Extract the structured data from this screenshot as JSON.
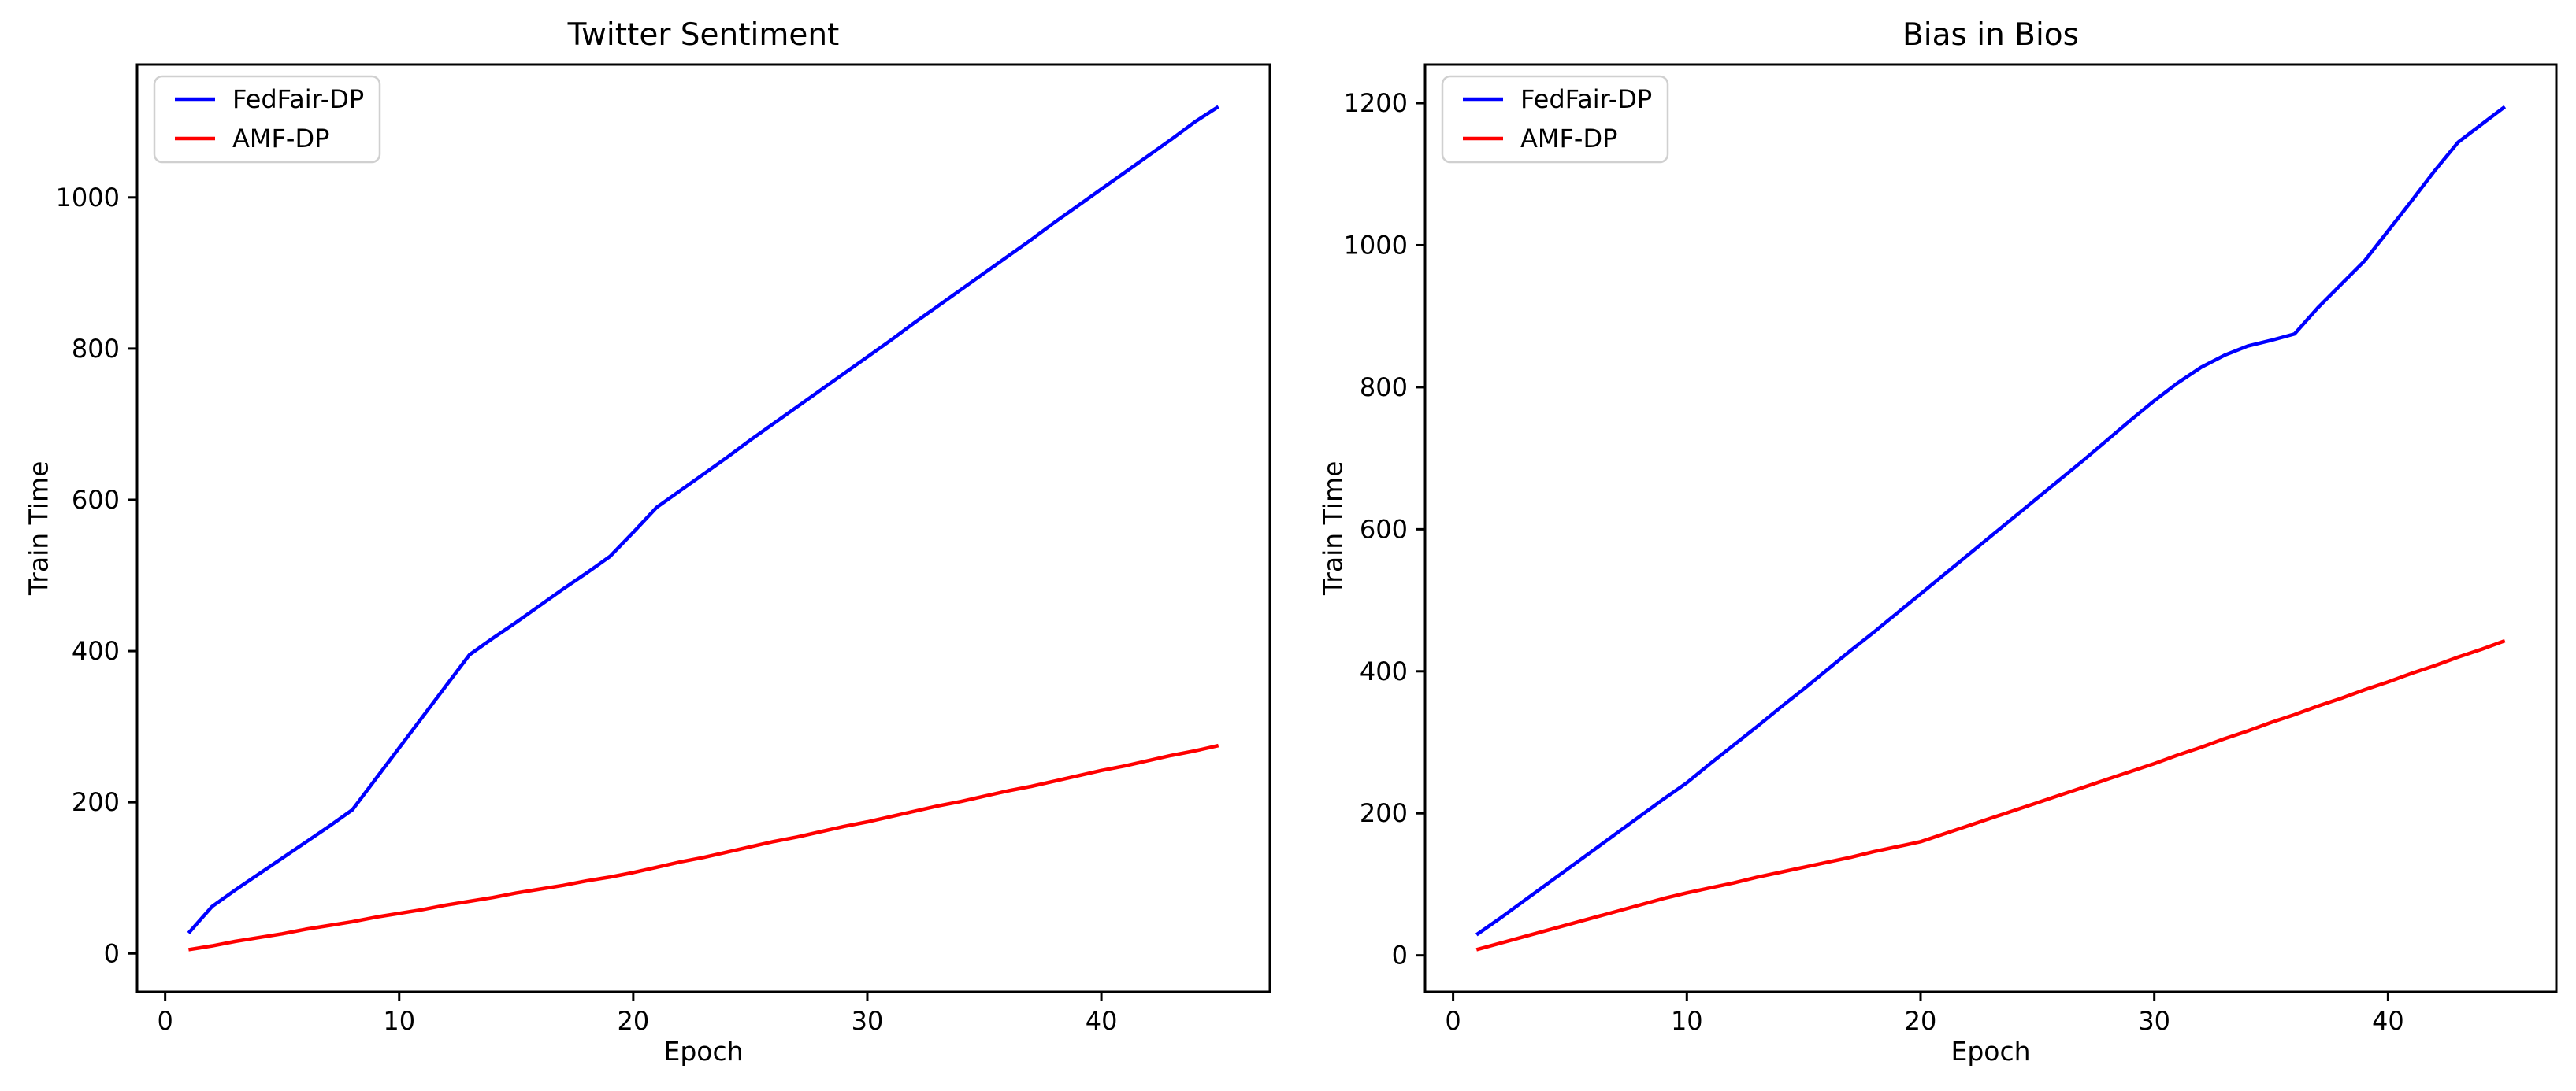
{
  "figure": {
    "background": "#ffffff",
    "text_color": "#000000",
    "spine_color": "#000000"
  },
  "legend_style": {
    "border_color": "#d0d0d0",
    "background": "#ffffff"
  },
  "chart_data": [
    {
      "type": "line",
      "title": "Twitter Sentiment",
      "xlabel": "Epoch",
      "ylabel": "Train Time",
      "x_ticks": [
        0,
        10,
        20,
        30,
        40
      ],
      "y_ticks": [
        0,
        200,
        400,
        600,
        800,
        1000
      ],
      "xlim": [
        -1.2,
        47.2
      ],
      "ylim": [
        -50.75,
        1175.75
      ],
      "grid": false,
      "legend_position": "upper left",
      "x": [
        1,
        2,
        3,
        4,
        5,
        6,
        7,
        8,
        9,
        10,
        11,
        12,
        13,
        14,
        15,
        16,
        17,
        18,
        19,
        20,
        21,
        22,
        23,
        24,
        25,
        26,
        27,
        28,
        29,
        30,
        31,
        32,
        33,
        34,
        35,
        36,
        37,
        38,
        39,
        40,
        41,
        42,
        43,
        44,
        45
      ],
      "series": [
        {
          "name": "FedFair-DP",
          "color": "#0000ff",
          "values": [
            27,
            62,
            84,
            105,
            126,
            147,
            168,
            190,
            231,
            272,
            313,
            354,
            395,
            417,
            438,
            460,
            482,
            503,
            525,
            557,
            590,
            612,
            634,
            656,
            679,
            701,
            723,
            745,
            767,
            789,
            811,
            834,
            856,
            878,
            900,
            922,
            944,
            967,
            989,
            1011,
            1033,
            1055,
            1077,
            1100,
            1120
          ]
        },
        {
          "name": "AMF-DP",
          "color": "#ff0000",
          "values": [
            5,
            10,
            16,
            21,
            26,
            32,
            37,
            42,
            48,
            53,
            58,
            64,
            69,
            74,
            80,
            85,
            90,
            96,
            101,
            107,
            114,
            121,
            127,
            134,
            141,
            148,
            154,
            161,
            168,
            174,
            181,
            188,
            195,
            201,
            208,
            215,
            221,
            228,
            235,
            242,
            248,
            255,
            262,
            268,
            275
          ]
        }
      ]
    },
    {
      "type": "line",
      "title": "Bias in Bios",
      "xlabel": "Epoch",
      "ylabel": "Train Time",
      "x_ticks": [
        0,
        10,
        20,
        30,
        40
      ],
      "y_ticks": [
        0,
        200,
        400,
        600,
        800,
        1000,
        1200
      ],
      "xlim": [
        -1.2,
        47.2
      ],
      "ylim": [
        -51.35,
        1254.35
      ],
      "grid": false,
      "legend_position": "upper left",
      "x": [
        1,
        2,
        3,
        4,
        5,
        6,
        7,
        8,
        9,
        10,
        11,
        12,
        13,
        14,
        15,
        16,
        17,
        18,
        19,
        20,
        21,
        22,
        23,
        24,
        25,
        26,
        27,
        28,
        29,
        30,
        31,
        32,
        33,
        34,
        35,
        36,
        37,
        38,
        39,
        40,
        41,
        42,
        43,
        44,
        45
      ],
      "series": [
        {
          "name": "FedFair-DP",
          "color": "#0000ff",
          "values": [
            29,
            52,
            76,
            100,
            124,
            148,
            172,
            196,
            220,
            243,
            270,
            296,
            322,
            349,
            375,
            402,
            429,
            455,
            482,
            509,
            536,
            563,
            590,
            617,
            644,
            671,
            698,
            726,
            754,
            781,
            806,
            828,
            845,
            858,
            866,
            875,
            912,
            945,
            978,
            1020,
            1062,
            1105,
            1145,
            1170,
            1195
          ]
        },
        {
          "name": "AMF-DP",
          "color": "#ff0000",
          "values": [
            8,
            17,
            26,
            35,
            44,
            53,
            62,
            71,
            80,
            88,
            95,
            102,
            110,
            117,
            124,
            131,
            138,
            146,
            153,
            160,
            171,
            182,
            193,
            204,
            215,
            226,
            237,
            248,
            259,
            270,
            282,
            293,
            305,
            316,
            328,
            339,
            351,
            362,
            374,
            385,
            397,
            408,
            420,
            431,
            443
          ]
        }
      ]
    }
  ]
}
